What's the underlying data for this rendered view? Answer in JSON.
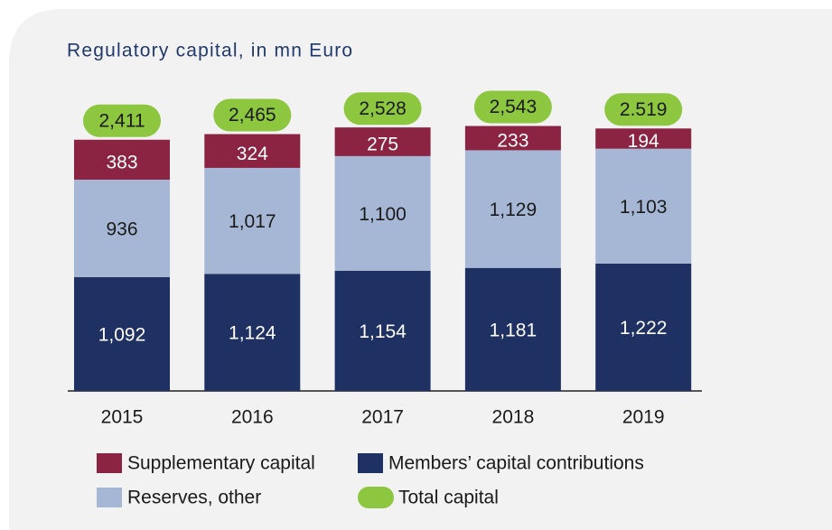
{
  "chart_data": {
    "type": "stacked-bar",
    "title": "Regulatory capital, in mn Euro",
    "categories": [
      "2015",
      "2016",
      "2017",
      "2018",
      "2019"
    ],
    "series": [
      {
        "name": "Members’ capital contributions",
        "color": "#1f3062",
        "values": [
          1092,
          1124,
          1154,
          1181,
          1222
        ],
        "value_labels": [
          "1,092",
          "1,124",
          "1,154",
          "1,181",
          "1,222"
        ]
      },
      {
        "name": "Reserves, other",
        "color": "#a6b7d6",
        "values": [
          936,
          1017,
          1100,
          1129,
          1103
        ],
        "value_labels": [
          "936",
          "1,017",
          "1,100",
          "1,129",
          "1,103"
        ]
      },
      {
        "name": "Supplementary capital",
        "color": "#8b2342",
        "values": [
          383,
          324,
          275,
          233,
          194
        ]
      }
    ],
    "totals": {
      "name": "Total capital",
      "color": "#8dc63f",
      "values": [
        2411,
        2465,
        2528,
        2543,
        2519
      ],
      "value_labels": [
        "2,411",
        "2,465",
        "2,528",
        "2,543",
        "2.519"
      ]
    }
  }
}
